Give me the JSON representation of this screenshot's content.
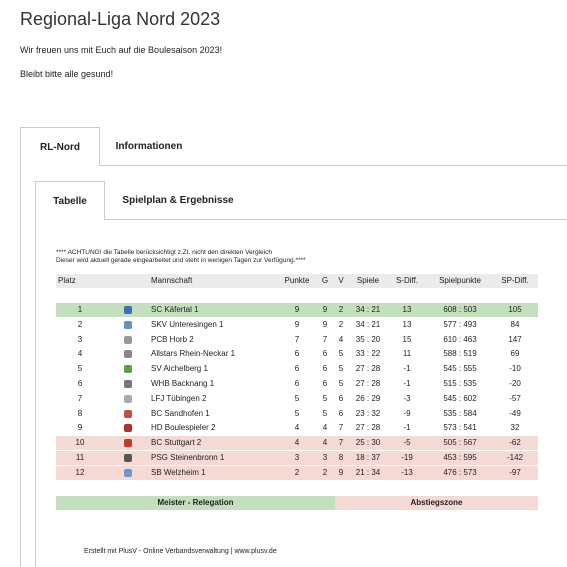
{
  "header": {
    "title": "Regional-Liga Nord 2023",
    "lines": [
      "Wir freuen uns mit Euch auf die Boulesaison 2023!",
      "Bleibt bitte alle gesund!"
    ]
  },
  "tabs": [
    "RL-Nord",
    "Informationen"
  ],
  "subtabs": [
    "Tabelle",
    "Spielplan & Ergebnisse"
  ],
  "notice": [
    "**** ACHTUNG! die Tabelle berücksichtigt z.Zt. nicht den direkten Vergleich",
    "Dieser wird aktuell gerade eingearbeitet und steht in wenigen Tagen zur Verfügung.****"
  ],
  "table": {
    "columns": [
      "Platz",
      "Mannschaft",
      "Punkte",
      "G",
      "V",
      "Spiele",
      "S-Diff.",
      "Spielpunkte",
      "SP-Diff."
    ],
    "rows": [
      [
        1,
        "SC Käfertal 1",
        9,
        9,
        2,
        "34 : 21",
        13,
        "608 : 503",
        105
      ],
      [
        2,
        "SKV Unteresingen 1",
        9,
        9,
        2,
        "34 : 21",
        13,
        "577 : 493",
        84
      ],
      [
        3,
        "PCB Horb 2",
        7,
        7,
        4,
        "35 : 20",
        15,
        "610 : 463",
        147
      ],
      [
        4,
        "Allstars Rhein-Neckar 1",
        6,
        6,
        5,
        "33 : 22",
        11,
        "588 : 519",
        69
      ],
      [
        5,
        "SV Aichelberg 1",
        6,
        6,
        5,
        "27 : 28",
        -1,
        "545 : 555",
        -10
      ],
      [
        6,
        "WHB Backnang 1",
        6,
        6,
        5,
        "27 : 28",
        -1,
        "515 : 535",
        -20
      ],
      [
        7,
        "LFJ Tübingen 2",
        5,
        5,
        6,
        "26 : 29",
        -3,
        "545 : 602",
        -57
      ],
      [
        8,
        "BC Sandhofen 1",
        5,
        5,
        6,
        "23 : 32",
        -9,
        "535 : 584",
        -49
      ],
      [
        9,
        "HD Boulespieler 2",
        4,
        4,
        7,
        "27 : 28",
        -1,
        "573 : 541",
        32
      ],
      [
        10,
        "BC Stuttgart 2",
        4,
        4,
        7,
        "25 : 30",
        -5,
        "505 : 567",
        -62
      ],
      [
        11,
        "PSG Steinenbronn 1",
        3,
        3,
        8,
        "18 : 37",
        -19,
        "453 : 595",
        -142
      ],
      [
        12,
        "SB Welzheim 1",
        2,
        2,
        9,
        "21 : 34",
        -13,
        "476 : 573",
        -97
      ]
    ]
  },
  "legend": [
    {
      "label": "Meister - Relegation",
      "color": "#c3dfbe"
    },
    {
      "label": "Abstiegszone",
      "color": "#f5d9d5"
    }
  ],
  "footer": "Erstellt mit PlusV - Online Verbandsverwaltung | www.plusv.de"
}
